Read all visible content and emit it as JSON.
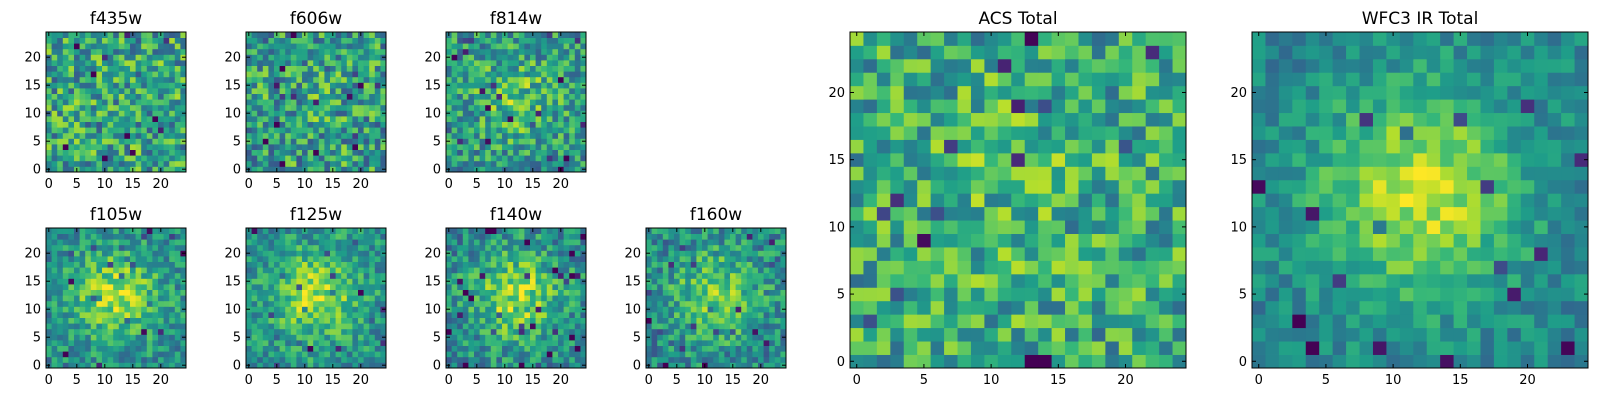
{
  "chart_data": {
    "type": "heatmap",
    "colormap": "viridis",
    "grid_size": [
      25,
      25
    ],
    "color_range": [
      0,
      1
    ],
    "panels": [
      {
        "id": "f435w",
        "title": "f435w",
        "xlim": [
          0,
          24
        ],
        "ylim": [
          0,
          24
        ],
        "xticks": [
          "0",
          "5",
          "10",
          "15",
          "20"
        ],
        "yticks": [
          "0",
          "5",
          "10",
          "15",
          "20"
        ],
        "peak": 0.0,
        "noise": 0.3,
        "base": 0.58,
        "seed": 11
      },
      {
        "id": "f606w",
        "title": "f606w",
        "xlim": [
          0,
          24
        ],
        "ylim": [
          0,
          24
        ],
        "xticks": [
          "0",
          "5",
          "10",
          "15",
          "20"
        ],
        "yticks": [
          "0",
          "5",
          "10",
          "15",
          "20"
        ],
        "peak": 0.05,
        "noise": 0.3,
        "base": 0.55,
        "seed": 23
      },
      {
        "id": "f814w",
        "title": "f814w",
        "xlim": [
          0,
          24
        ],
        "ylim": [
          0,
          24
        ],
        "xticks": [
          "0",
          "5",
          "10",
          "15",
          "20"
        ],
        "yticks": [
          "0",
          "5",
          "10",
          "15",
          "20"
        ],
        "peak": 0.2,
        "noise": 0.26,
        "base": 0.52,
        "seed": 37
      },
      {
        "id": "f105w",
        "title": "f105w",
        "xlim": [
          0,
          24
        ],
        "ylim": [
          0,
          24
        ],
        "xticks": [
          "0",
          "5",
          "10",
          "15",
          "20"
        ],
        "yticks": [
          "0",
          "5",
          "10",
          "15",
          "20"
        ],
        "peak": 0.38,
        "noise": 0.2,
        "base": 0.48,
        "seed": 41
      },
      {
        "id": "f125w",
        "title": "f125w",
        "xlim": [
          0,
          24
        ],
        "ylim": [
          0,
          24
        ],
        "xticks": [
          "0",
          "5",
          "10",
          "15",
          "20"
        ],
        "yticks": [
          "0",
          "5",
          "10",
          "15",
          "20"
        ],
        "peak": 0.36,
        "noise": 0.2,
        "base": 0.5,
        "seed": 53
      },
      {
        "id": "f140w",
        "title": "f140w",
        "xlim": [
          0,
          24
        ],
        "ylim": [
          0,
          24
        ],
        "xticks": [
          "0",
          "5",
          "10",
          "15",
          "20"
        ],
        "yticks": [
          "0",
          "5",
          "10",
          "15",
          "20"
        ],
        "peak": 0.38,
        "noise": 0.22,
        "base": 0.47,
        "seed": 67
      },
      {
        "id": "f160w",
        "title": "f160w",
        "xlim": [
          0,
          24
        ],
        "ylim": [
          0,
          24
        ],
        "xticks": [
          "0",
          "5",
          "10",
          "15",
          "20"
        ],
        "yticks": [
          "0",
          "5",
          "10",
          "15",
          "20"
        ],
        "peak": 0.32,
        "noise": 0.22,
        "base": 0.47,
        "seed": 79
      },
      {
        "id": "acs",
        "title": "ACS Total",
        "xlim": [
          0,
          24
        ],
        "ylim": [
          0,
          24
        ],
        "xticks": [
          "0",
          "5",
          "10",
          "15",
          "20"
        ],
        "yticks": [
          "0",
          "5",
          "10",
          "15",
          "20"
        ],
        "peak": 0.08,
        "noise": 0.26,
        "base": 0.6,
        "seed": 97
      },
      {
        "id": "wfc3",
        "title": "WFC3 IR Total",
        "xlim": [
          0,
          24
        ],
        "ylim": [
          0,
          24
        ],
        "xticks": [
          "0",
          "5",
          "10",
          "15",
          "20"
        ],
        "yticks": [
          "0",
          "5",
          "10",
          "15",
          "20"
        ],
        "peak": 0.45,
        "noise": 0.14,
        "base": 0.45,
        "seed": 131
      }
    ]
  }
}
